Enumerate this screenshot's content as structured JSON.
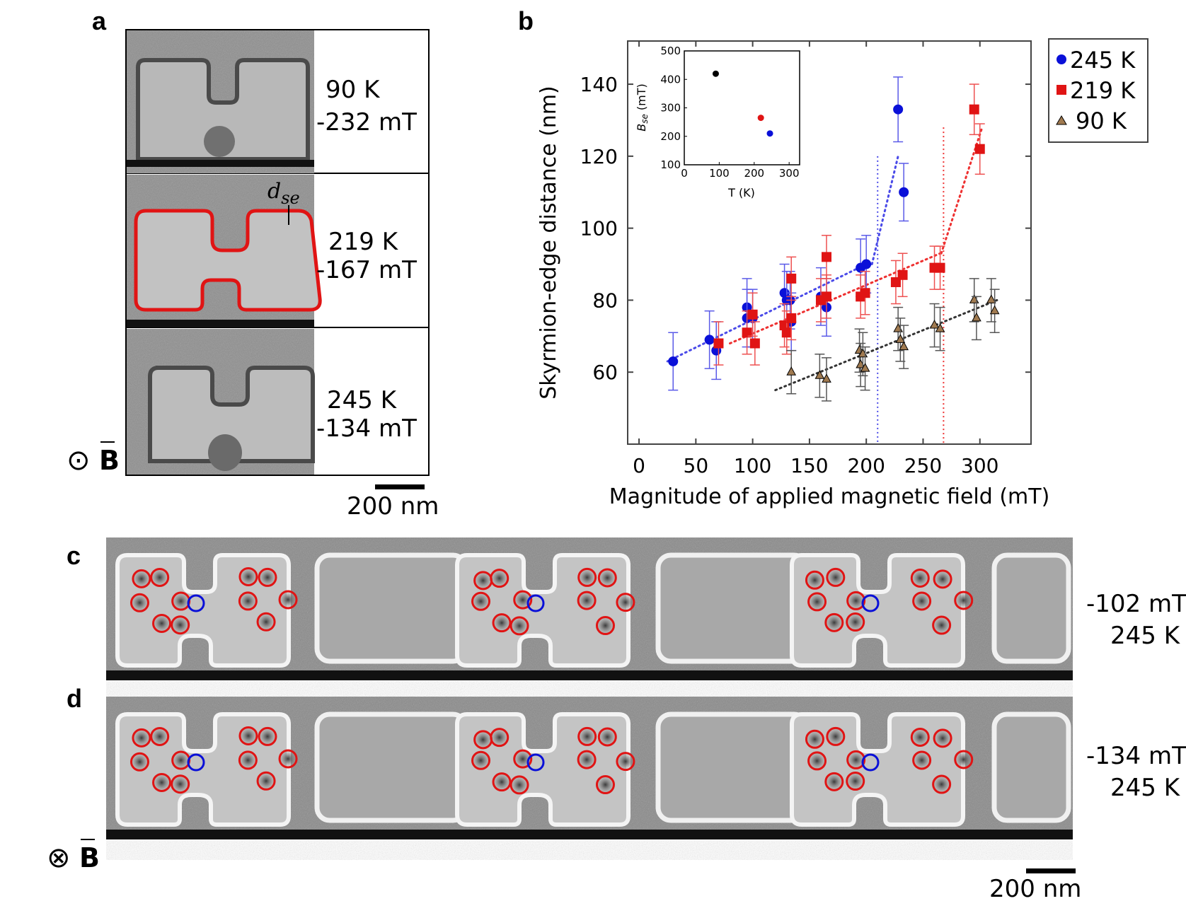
{
  "panels": {
    "a": {
      "label": "a",
      "rows": [
        {
          "temp": "90 K",
          "field": "-232 mT"
        },
        {
          "temp": "219 K",
          "field": "-167 mT"
        },
        {
          "temp": "245 K",
          "field": "-134 mT"
        }
      ],
      "dse_main": "d",
      "dse_sub": "se",
      "field_symbol_left": "⊙",
      "field_symbol_right": "B",
      "scalebar": "200 nm"
    },
    "b": {
      "label": "b"
    },
    "c": {
      "label": "c",
      "field": "-102 mT",
      "temp": "245 K"
    },
    "d": {
      "label": "d",
      "field": "-134 mT",
      "temp": "245 K",
      "field_symbol_left": "⊗",
      "field_symbol_right": "B",
      "scalebar": "200 nm"
    }
  },
  "colors": {
    "blue": "#0a10d8",
    "red": "#e01414",
    "brown": "#a07a50",
    "dark": "#333333"
  },
  "chart_data": [
    {
      "type": "scatter",
      "xlabel": "Magnitude of applied magnetic field (mT)",
      "ylabel": "Skyrmion-edge distance (nm)",
      "xlim": [
        -10,
        345
      ],
      "ylim": [
        40,
        152
      ],
      "xticks": [
        0,
        50,
        100,
        150,
        200,
        250,
        300
      ],
      "yticks": [
        60,
        80,
        100,
        120,
        140
      ],
      "legend_position": "outside-right",
      "series": [
        {
          "name": "245 K",
          "marker": "circle",
          "color": "#0a10d8",
          "points": [
            [
              30,
              63,
              8
            ],
            [
              62,
              69,
              8
            ],
            [
              68,
              66,
              8
            ],
            [
              95,
              78,
              8
            ],
            [
              95,
              75,
              8
            ],
            [
              100,
              75,
              8
            ],
            [
              128,
              82,
              8
            ],
            [
              130,
              80,
              8
            ],
            [
              133,
              80,
              8
            ],
            [
              134,
              74,
              8
            ],
            [
              160,
              81,
              8
            ],
            [
              165,
              78,
              8
            ],
            [
              195,
              89,
              8
            ],
            [
              200,
              90,
              8
            ],
            [
              228,
              133,
              9
            ],
            [
              233,
              110,
              8
            ]
          ],
          "fit": [
            [
              25,
              63
            ],
            [
              200,
              90
            ]
          ],
          "fit2": [
            [
              205,
              90
            ],
            [
              228,
              120
            ]
          ],
          "vline": 210
        },
        {
          "name": "219 K",
          "marker": "square",
          "color": "#e01414",
          "points": [
            [
              70,
              68,
              6
            ],
            [
              95,
              71,
              6
            ],
            [
              100,
              76,
              6
            ],
            [
              102,
              68,
              6
            ],
            [
              128,
              73,
              6
            ],
            [
              130,
              71,
              6
            ],
            [
              134,
              86,
              6
            ],
            [
              134,
              75,
              6
            ],
            [
              160,
              80,
              6
            ],
            [
              165,
              92,
              6
            ],
            [
              165,
              81,
              6
            ],
            [
              195,
              81,
              6
            ],
            [
              199,
              82,
              6
            ],
            [
              226,
              85,
              6
            ],
            [
              232,
              87,
              6
            ],
            [
              260,
              89,
              6
            ],
            [
              265,
              89,
              6
            ],
            [
              295,
              133,
              7
            ],
            [
              300,
              122,
              7
            ]
          ],
          "fit": [
            [
              80,
              68
            ],
            [
              265,
              93
            ]
          ],
          "fit2": [
            [
              266,
              93
            ],
            [
              302,
              128
            ]
          ],
          "vline": 268
        },
        {
          "name": "90 K",
          "marker": "triangle",
          "color": "#a07a50",
          "points": [
            [
              134,
              60,
              6
            ],
            [
              159,
              59,
              6
            ],
            [
              165,
              58,
              6
            ],
            [
              194,
              66,
              6
            ],
            [
              195,
              62,
              6
            ],
            [
              197,
              65,
              6
            ],
            [
              199,
              61,
              6
            ],
            [
              228,
              72,
              6
            ],
            [
              230,
              69,
              6
            ],
            [
              233,
              67,
              6
            ],
            [
              260,
              73,
              6
            ],
            [
              265,
              72,
              6
            ],
            [
              295,
              80,
              6
            ],
            [
              297,
              75,
              6
            ],
            [
              310,
              80,
              6
            ],
            [
              313,
              77,
              6
            ]
          ],
          "fit": [
            [
              120,
              55
            ],
            [
              315,
              80
            ]
          ]
        }
      ]
    },
    {
      "type": "scatter",
      "xlabel": "T (K)",
      "ylabel": "B_se (mT)",
      "ylabel_main": "B",
      "ylabel_sub": "se",
      "ylabel_unit": " (mT)",
      "xlim": [
        0,
        330
      ],
      "ylim": [
        100,
        500
      ],
      "xticks": [
        0,
        100,
        200,
        300
      ],
      "yticks": [
        100,
        200,
        300,
        400,
        500
      ],
      "points": [
        {
          "x": 90,
          "y": 420,
          "color": "#000000"
        },
        {
          "x": 219,
          "y": 265,
          "color": "#e01414"
        },
        {
          "x": 245,
          "y": 210,
          "color": "#0a10d8"
        }
      ]
    }
  ]
}
